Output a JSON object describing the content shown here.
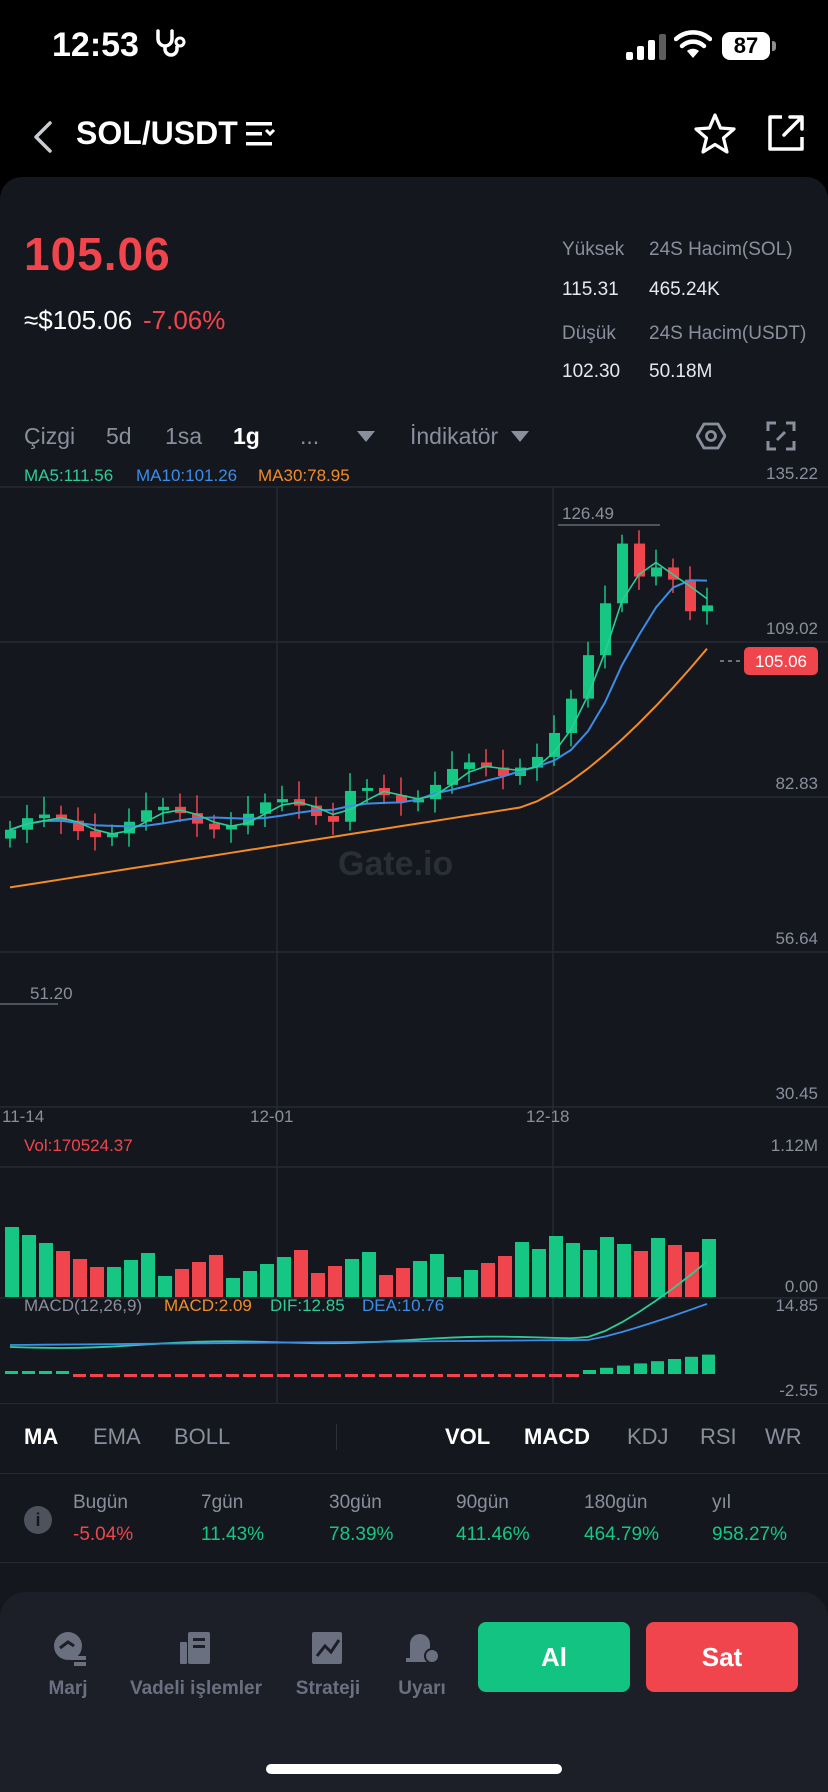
{
  "status": {
    "time": "12:53",
    "activity_icon": "stethoscope-icon",
    "battery": "87"
  },
  "nav": {
    "pair": "SOL/USDT"
  },
  "ticker": {
    "price": "105.06",
    "equiv": "≈$105.06",
    "change": "-7.06%",
    "high_label": "Yüksek",
    "high": "115.31",
    "low_label": "Düşük",
    "low": "102.30",
    "vol_sol_label": "24S Hacim(SOL)",
    "vol_sol": "465.24K",
    "vol_usdt_label": "24S Hacim(USDT)",
    "vol_usdt": "50.18M"
  },
  "toolbar": {
    "line": "Çizgi",
    "d5": "5d",
    "h1": "1sa",
    "d1": "1g",
    "more": "...",
    "indicator": "İndikatör"
  },
  "chart": {
    "ma5_label": "MA5:111.56",
    "ma10_label": "MA10:101.26",
    "ma30_label": "MA30:78.95",
    "y_ticks": [
      "135.22",
      "109.02",
      "82.83",
      "56.64",
      "30.45"
    ],
    "current_price_tag": "105.06",
    "high_marker": "126.49",
    "low_marker": "51.20",
    "x_ticks": [
      "11-14",
      "12-01",
      "12-18"
    ],
    "watermark": "Gate.io",
    "vol_label": "Vol:170524.37",
    "vol_max": "1.12M",
    "vol_min": "0.00",
    "macd_params": "MACD(12,26,9)",
    "macd_value": "MACD:2.09",
    "dif_value": "DIF:12.85",
    "dea_value": "DEA:10.76",
    "macd_max": "14.85",
    "macd_min": "-2.55",
    "colors": {
      "up": "#16c784",
      "down": "#f0454c",
      "ma5": "#2ecc95",
      "ma10": "#3b8de8",
      "ma30": "#f28c28"
    }
  },
  "indicators": {
    "ma": "MA",
    "ema": "EMA",
    "boll": "BOLL",
    "vol": "VOL",
    "macd": "MACD",
    "kdj": "KDJ",
    "rsi": "RSI",
    "wr": "WR"
  },
  "performance": [
    {
      "label": "Bugün",
      "value": "-5.04%",
      "dir": "down"
    },
    {
      "label": "7gün",
      "value": "11.43%",
      "dir": "up"
    },
    {
      "label": "30gün",
      "value": "78.39%",
      "dir": "up"
    },
    {
      "label": "90gün",
      "value": "411.46%",
      "dir": "up"
    },
    {
      "label": "180gün",
      "value": "464.79%",
      "dir": "up"
    },
    {
      "label": "yıl",
      "value": "958.27%",
      "dir": "up"
    }
  ],
  "bottom": {
    "margin": "Marj",
    "futures": "Vadeli işlemler",
    "strategy": "Strateji",
    "alert": "Uyarı",
    "buy": "Al",
    "sell": "Sat"
  }
}
